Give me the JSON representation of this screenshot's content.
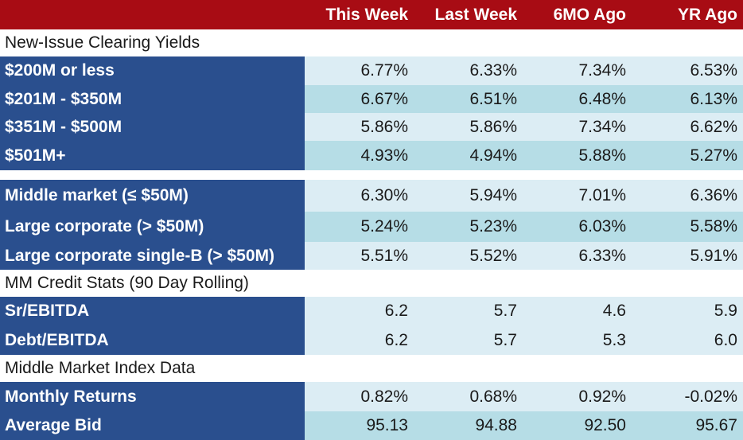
{
  "columns": [
    "This Week",
    "Last Week",
    "6MO Ago",
    "YR Ago"
  ],
  "sections": [
    {
      "title": "New-Issue Clearing Yields",
      "rows": [
        {
          "label": "$200M or less",
          "values": [
            "6.77%",
            "6.33%",
            "7.34%",
            "6.53%"
          ]
        },
        {
          "label": "$201M - $350M",
          "values": [
            "6.67%",
            "6.51%",
            "6.48%",
            "6.13%"
          ]
        },
        {
          "label": "$351M - $500M",
          "values": [
            "5.86%",
            "5.86%",
            "7.34%",
            "6.62%"
          ]
        },
        {
          "label": "$501M+",
          "values": [
            "4.93%",
            "4.94%",
            "5.88%",
            "5.27%"
          ]
        }
      ]
    },
    {
      "title": "",
      "rows": [
        {
          "label": "Middle market (≤ $50M)",
          "values": [
            "6.30%",
            "5.94%",
            "7.01%",
            "6.36%"
          ]
        },
        {
          "label": "Large corporate (> $50M)",
          "values": [
            "5.24%",
            "5.23%",
            "6.03%",
            "5.58%"
          ]
        },
        {
          "label": "Large corporate single-B (> $50M)",
          "values": [
            "5.51%",
            "5.52%",
            "6.33%",
            "5.91%"
          ]
        }
      ]
    },
    {
      "title": "MM Credit Stats (90 Day Rolling)",
      "rows": [
        {
          "label": "Sr/EBITDA",
          "values": [
            "6.2",
            "5.7",
            "4.6",
            "5.9"
          ]
        },
        {
          "label": "Debt/EBITDA",
          "values": [
            "6.2",
            "5.7",
            "5.3",
            "6.0"
          ]
        }
      ]
    },
    {
      "title": "Middle Market Index Data",
      "rows": [
        {
          "label": "Monthly Returns",
          "values": [
            "0.82%",
            "0.68%",
            "0.92%",
            "-0.02%"
          ]
        },
        {
          "label": "Average Bid",
          "values": [
            "95.13",
            "94.88",
            "92.50",
            "95.67"
          ]
        }
      ]
    }
  ],
  "colors": {
    "header": "#a80c14",
    "label_bg": "#2a4f8e",
    "row_light": "#dcedf4",
    "row_dark": "#b6dde6"
  }
}
